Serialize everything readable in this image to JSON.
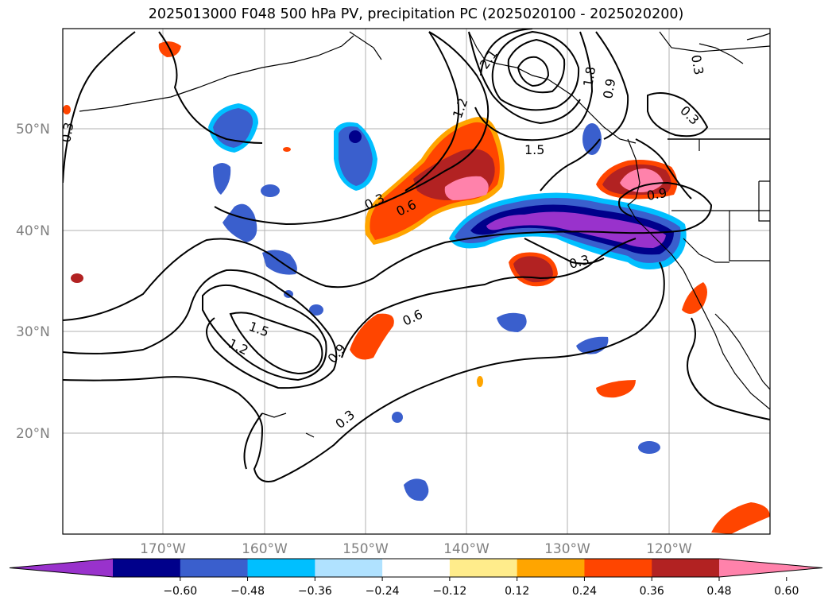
{
  "title": "2025013000 F048 500 hPa PV, precipitation PC (2025020100 - 2025020200)",
  "axes": {
    "lat_labels": [
      "50°N",
      "40°N",
      "30°N",
      "20°N"
    ],
    "lon_labels": [
      "170°W",
      "160°W",
      "150°W",
      "140°W",
      "130°W",
      "120°W"
    ]
  },
  "colorbar": {
    "colors": [
      "#9932cc",
      "#00008b",
      "#3a5fcd",
      "#00bfff",
      "#b0e2ff",
      "#ffffff",
      "#ffec8b",
      "#ffa500",
      "#ff4500",
      "#b22222",
      "#ff82ab"
    ],
    "ticks": [
      "−0.60",
      "−0.48",
      "−0.36",
      "−0.24",
      "−0.12",
      "0.12",
      "0.24",
      "0.36",
      "0.48",
      "0.60"
    ]
  },
  "contour_labels": [
    "0.3",
    "0.6",
    "0.9",
    "1.2",
    "1.5",
    "1.8",
    "2.1",
    "0.3",
    "0.6",
    "0.9",
    "1.5",
    "0.3",
    "0.9",
    "0.3",
    "0.3",
    "0.9",
    "1.5",
    "0.3"
  ],
  "colors": {
    "land": "#000000",
    "grid": "#b0b0b0",
    "contour": "#000000"
  }
}
